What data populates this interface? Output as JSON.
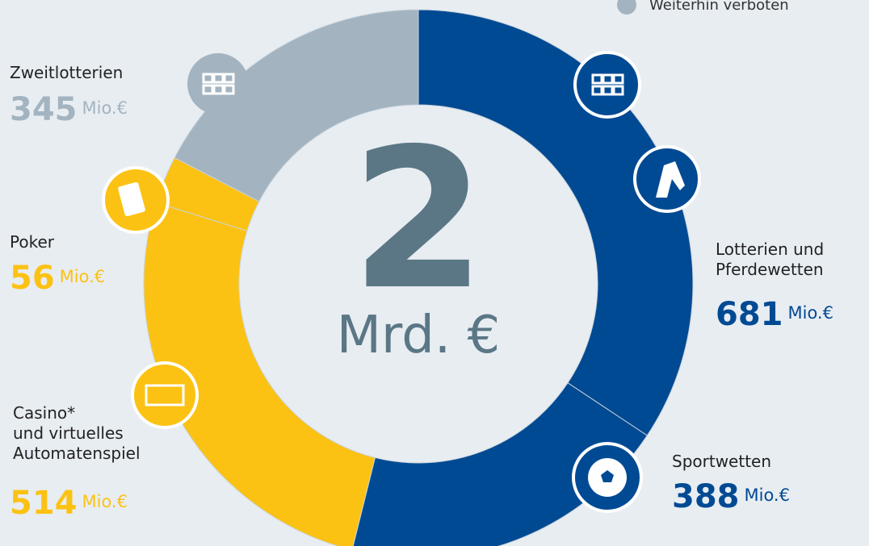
{
  "chart_data": {
    "type": "donut",
    "categories": [
      "Lotterien und\nPferdewetten",
      "Sportwetten",
      "Casino*\nund virtuelles\nAutomatenspiel",
      "Poker",
      "Zweitlotterien"
    ],
    "values": [
      681,
      388,
      514,
      56,
      345
    ],
    "colors": [
      "#004a93",
      "#004a93",
      "#fcc213",
      "#fcc213",
      "#a3b4c0"
    ],
    "unit": "Mio.€",
    "center_label": "2",
    "center_unit": "Mrd. €",
    "legend": [
      {
        "label": "Weiterhin verboten",
        "color": "#a3b4c0"
      }
    ]
  }
}
